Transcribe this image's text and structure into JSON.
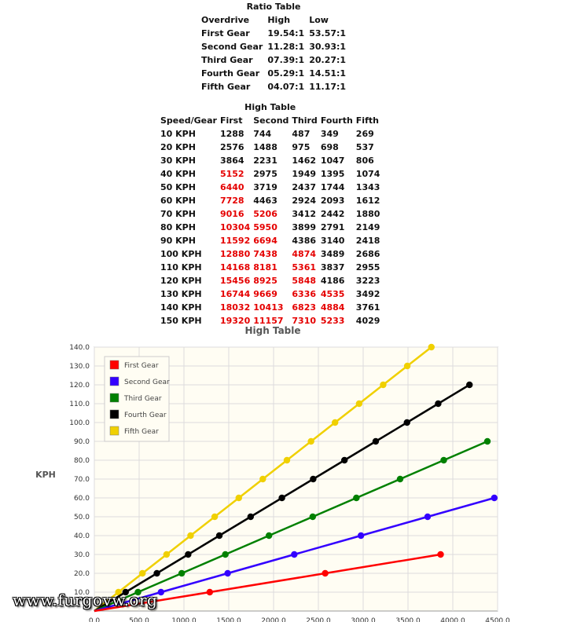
{
  "ratio_table": {
    "title": "Ratio Table",
    "headers": [
      "Overdrive",
      "High",
      "Low"
    ],
    "rows": [
      [
        "First Gear",
        "19.54:1",
        "53.57:1"
      ],
      [
        "Second Gear",
        "11.28:1",
        "30.93:1"
      ],
      [
        "Third Gear",
        "07.39:1",
        "20.27:1"
      ],
      [
        "Fourth Gear",
        "05.29:1",
        "14.51:1"
      ],
      [
        "Fifth Gear",
        "04.07:1",
        "11.17:1"
      ]
    ]
  },
  "high_table": {
    "title": "High Table",
    "headers": [
      "Speed/Gear",
      "First",
      "Second",
      "Third",
      "Fourth",
      "Fifth"
    ],
    "highlight_color": "#e50000",
    "rows": [
      {
        "cells": [
          "10 KPH",
          "1288",
          "744",
          "487",
          "349",
          "269"
        ],
        "red": [
          false,
          false,
          false,
          false,
          false
        ]
      },
      {
        "cells": [
          "20 KPH",
          "2576",
          "1488",
          "975",
          "698",
          "537"
        ],
        "red": [
          false,
          false,
          false,
          false,
          false
        ]
      },
      {
        "cells": [
          "30 KPH",
          "3864",
          "2231",
          "1462",
          "1047",
          "806"
        ],
        "red": [
          false,
          false,
          false,
          false,
          false
        ]
      },
      {
        "cells": [
          "40 KPH",
          "5152",
          "2975",
          "1949",
          "1395",
          "1074"
        ],
        "red": [
          true,
          false,
          false,
          false,
          false
        ]
      },
      {
        "cells": [
          "50 KPH",
          "6440",
          "3719",
          "2437",
          "1744",
          "1343"
        ],
        "red": [
          true,
          false,
          false,
          false,
          false
        ]
      },
      {
        "cells": [
          "60 KPH",
          "7728",
          "4463",
          "2924",
          "2093",
          "1612"
        ],
        "red": [
          true,
          false,
          false,
          false,
          false
        ]
      },
      {
        "cells": [
          "70 KPH",
          "9016",
          "5206",
          "3412",
          "2442",
          "1880"
        ],
        "red": [
          true,
          true,
          false,
          false,
          false
        ]
      },
      {
        "cells": [
          "80 KPH",
          "10304",
          "5950",
          "3899",
          "2791",
          "2149"
        ],
        "red": [
          true,
          true,
          false,
          false,
          false
        ]
      },
      {
        "cells": [
          "90 KPH",
          "11592",
          "6694",
          "4386",
          "3140",
          "2418"
        ],
        "red": [
          true,
          true,
          false,
          false,
          false
        ]
      },
      {
        "cells": [
          "100 KPH",
          "12880",
          "7438",
          "4874",
          "3489",
          "2686"
        ],
        "red": [
          true,
          true,
          true,
          false,
          false
        ]
      },
      {
        "cells": [
          "110 KPH",
          "14168",
          "8181",
          "5361",
          "3837",
          "2955"
        ],
        "red": [
          true,
          true,
          true,
          false,
          false
        ]
      },
      {
        "cells": [
          "120 KPH",
          "15456",
          "8925",
          "5848",
          "4186",
          "3223"
        ],
        "red": [
          true,
          true,
          true,
          false,
          false
        ]
      },
      {
        "cells": [
          "130 KPH",
          "16744",
          "9669",
          "6336",
          "4535",
          "3492"
        ],
        "red": [
          true,
          true,
          true,
          true,
          false
        ]
      },
      {
        "cells": [
          "140 KPH",
          "18032",
          "10413",
          "6823",
          "4884",
          "3761"
        ],
        "red": [
          true,
          true,
          true,
          true,
          false
        ]
      },
      {
        "cells": [
          "150 KPH",
          "19320",
          "11157",
          "7310",
          "5233",
          "4029"
        ],
        "red": [
          true,
          true,
          true,
          true,
          false
        ]
      }
    ]
  },
  "chart_data": {
    "type": "line",
    "title": "High Table",
    "ylabel": "KPH",
    "xlabel": "",
    "xlim": [
      0,
      4500
    ],
    "ylim": [
      0,
      140
    ],
    "xticks": [
      "0.0",
      "500.0",
      "1000.0",
      "1500.0",
      "2000.0",
      "2500.0",
      "3000.0",
      "3500.0",
      "4000.0",
      "4500.0"
    ],
    "yticks": [
      "10.0",
      "20.0",
      "30.0",
      "40.0",
      "50.0",
      "60.0",
      "70.0",
      "80.0",
      "90.0",
      "100.0",
      "110.0",
      "120.0",
      "130.0",
      "140.0"
    ],
    "grid": true,
    "legend_position": "top-left",
    "series": [
      {
        "name": "First Gear",
        "color": "#ff0000",
        "points": [
          [
            0,
            0
          ],
          [
            1288,
            10
          ],
          [
            2576,
            20
          ],
          [
            3864,
            30
          ]
        ]
      },
      {
        "name": "Second Gear",
        "color": "#3300ff",
        "points": [
          [
            0,
            0
          ],
          [
            744,
            10
          ],
          [
            1488,
            20
          ],
          [
            2231,
            30
          ],
          [
            2975,
            40
          ],
          [
            3719,
            50
          ],
          [
            4463,
            60
          ]
        ]
      },
      {
        "name": "Third Gear",
        "color": "#008000",
        "points": [
          [
            0,
            0
          ],
          [
            487,
            10
          ],
          [
            975,
            20
          ],
          [
            1462,
            30
          ],
          [
            1949,
            40
          ],
          [
            2437,
            50
          ],
          [
            2924,
            60
          ],
          [
            3412,
            70
          ],
          [
            3899,
            80
          ],
          [
            4386,
            90
          ]
        ]
      },
      {
        "name": "Fourth Gear",
        "color": "#000000",
        "points": [
          [
            0,
            0
          ],
          [
            349,
            10
          ],
          [
            698,
            20
          ],
          [
            1047,
            30
          ],
          [
            1395,
            40
          ],
          [
            1744,
            50
          ],
          [
            2093,
            60
          ],
          [
            2442,
            70
          ],
          [
            2791,
            80
          ],
          [
            3140,
            90
          ],
          [
            3489,
            100
          ],
          [
            3837,
            110
          ],
          [
            4186,
            120
          ]
        ]
      },
      {
        "name": "Fifth Gear",
        "color": "#f0d000",
        "points": [
          [
            0,
            0
          ],
          [
            269,
            10
          ],
          [
            537,
            20
          ],
          [
            806,
            30
          ],
          [
            1074,
            40
          ],
          [
            1343,
            50
          ],
          [
            1612,
            60
          ],
          [
            1880,
            70
          ],
          [
            2149,
            80
          ],
          [
            2418,
            90
          ],
          [
            2686,
            100
          ],
          [
            2955,
            110
          ],
          [
            3223,
            120
          ],
          [
            3492,
            130
          ],
          [
            3761,
            140
          ]
        ]
      }
    ]
  },
  "watermark": "www.furgovw.org"
}
